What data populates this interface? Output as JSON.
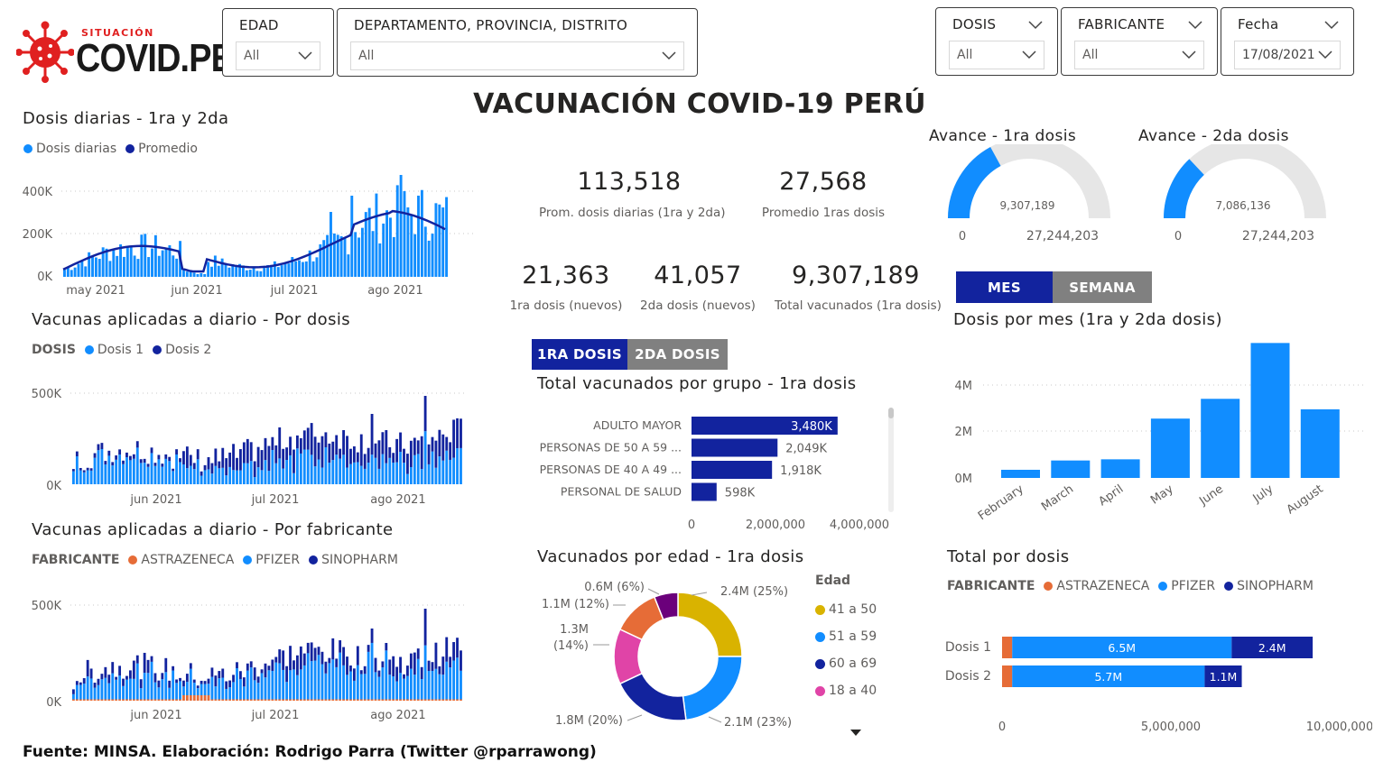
{
  "logo": {
    "small": "SITUACIÓN",
    "big": "COVID.PE",
    "accent": "#e02020"
  },
  "page_title": "VACUNACIÓN COVID-19 PERÚ",
  "filters": {
    "edad": {
      "label": "EDAD",
      "value": "All"
    },
    "ubicacion": {
      "label": "DEPARTAMENTO, PROVINCIA, DISTRITO",
      "value": "All"
    },
    "dosis": {
      "label": "DOSIS",
      "value": "All"
    },
    "fabricante": {
      "label": "FABRICANTE",
      "value": "All"
    },
    "fecha": {
      "label": "Fecha",
      "value": "17/08/2021"
    }
  },
  "colors": {
    "light": "#118dff",
    "dark": "#12239e",
    "orange": "#e66c37",
    "yellow": "#d9b300",
    "pink": "#e044a7",
    "maroon": "#6b007b",
    "gray_btn": "#808080"
  },
  "daily": {
    "title": "Dosis diarias - 1ra y 2da",
    "legend": [
      "Dosis diarias",
      "Promedio"
    ],
    "yticks": [
      "400K",
      "200K",
      "0K"
    ],
    "xticks": [
      "may 2021",
      "jun 2021",
      "jul 2021",
      "ago 2021"
    ]
  },
  "por_dosis": {
    "title": "Vacunas aplicadas a diario - Por dosis",
    "legend_title": "DOSIS",
    "legend": [
      "Dosis 1",
      "Dosis 2"
    ],
    "yticks": [
      "500K",
      "0K"
    ],
    "xticks": [
      "jun 2021",
      "jul 2021",
      "ago 2021"
    ]
  },
  "por_fabricante": {
    "title": "Vacunas aplicadas a diario - Por fabricante",
    "legend_title": "FABRICANTE",
    "legend": [
      "ASTRAZENECA",
      "PFIZER",
      "SINOPHARM"
    ],
    "yticks": [
      "500K",
      "0K"
    ],
    "xticks": [
      "jun 2021",
      "jul 2021",
      "ago 2021"
    ]
  },
  "kpis": {
    "prom_diarias": {
      "value": "113,518",
      "label": "Prom. dosis diarias (1ra y 2da)"
    },
    "prom_1ras": {
      "value": "27,568",
      "label": "Promedio 1ras dosis"
    },
    "nuevos_1ra": {
      "value": "21,363",
      "label": "1ra dosis (nuevos)"
    },
    "nuevos_2da": {
      "value": "41,057",
      "label": "2da dosis (nuevos)"
    },
    "total_vacunados": {
      "value": "9,307,189",
      "label": "Total vacunados (1ra dosis)"
    }
  },
  "gauges": {
    "g1": {
      "title": "Avance - 1ra dosis",
      "value": "9,307,189",
      "min": "0",
      "max": "27,244,203",
      "fraction": 0.3416
    },
    "g2": {
      "title": "Avance - 2da dosis",
      "value": "7,086,136",
      "min": "0",
      "max": "27,244,203",
      "fraction": 0.2601
    }
  },
  "toggles": {
    "dosis_1": "1RA DOSIS",
    "dosis_2": "2DA DOSIS",
    "mes": "MES",
    "semana": "SEMANA"
  },
  "grupo": {
    "title": "Total vacunados por grupo - 1ra dosis",
    "categories": [
      "ADULTO MAYOR",
      "PERSONAS DE 50 A 59 ...",
      "PERSONAS DE 40 A 49 ...",
      "PERSONAL DE SALUD"
    ],
    "values": [
      3480000,
      2049000,
      1918000,
      598000
    ],
    "labels": [
      "3,480K",
      "2,049K",
      "1,918K",
      "598K"
    ],
    "xticks": [
      "0",
      "2,000,000",
      "4,000,000"
    ],
    "xmax": 4000000
  },
  "edad_donut": {
    "title": "Vacunados por edad - 1ra dosis",
    "legend_title": "Edad",
    "legend": [
      "41 a 50",
      "51 a 59",
      "60 a 69",
      "18 a 40"
    ],
    "slices": [
      {
        "label": "2.4M (25%)",
        "share": 25,
        "color": "#d9b300"
      },
      {
        "label": "2.1M (23%)",
        "share": 23,
        "color": "#118dff"
      },
      {
        "label": "1.8M (20%)",
        "share": 20,
        "color": "#12239e"
      },
      {
        "label": "1.3M (14%)",
        "share": 14,
        "color": "#e044a7"
      },
      {
        "label": "1.1M (12%)",
        "share": 12,
        "color": "#e66c37"
      },
      {
        "label": "0.6M (6%)",
        "share": 6,
        "color": "#6b007b"
      }
    ]
  },
  "chart_data": {
    "type": "bar",
    "title": "Dosis por mes (1ra y 2da dosis)",
    "categories": [
      "February",
      "March",
      "April",
      "May",
      "June",
      "July",
      "August"
    ],
    "values": [
      0.35,
      0.75,
      0.8,
      2.55,
      3.4,
      5.8,
      2.95
    ],
    "yticks": [
      "4M",
      "2M",
      "0M"
    ],
    "ylim": [
      0,
      6
    ]
  },
  "total_dosis": {
    "title": "Total por dosis",
    "legend_title": "FABRICANTE",
    "legend": [
      "ASTRAZENECA",
      "PFIZER",
      "SINOPHARM"
    ],
    "rows": [
      {
        "label": "Dosis 1",
        "astrazeneca": 0.3,
        "pfizer": 6.5,
        "sinopharm": 2.4,
        "pfizer_label": "6.5M",
        "sinopharm_label": "2.4M"
      },
      {
        "label": "Dosis 2",
        "astrazeneca": 0.3,
        "pfizer": 5.7,
        "sinopharm": 1.1,
        "pfizer_label": "5.7M",
        "sinopharm_label": "1.1M"
      }
    ],
    "xticks": [
      "0",
      "5,000,000",
      "10,000,000"
    ]
  },
  "footer": "Fuente: MINSA. Elaboración: Rodrigo Parra (Twitter @rparrawong)"
}
